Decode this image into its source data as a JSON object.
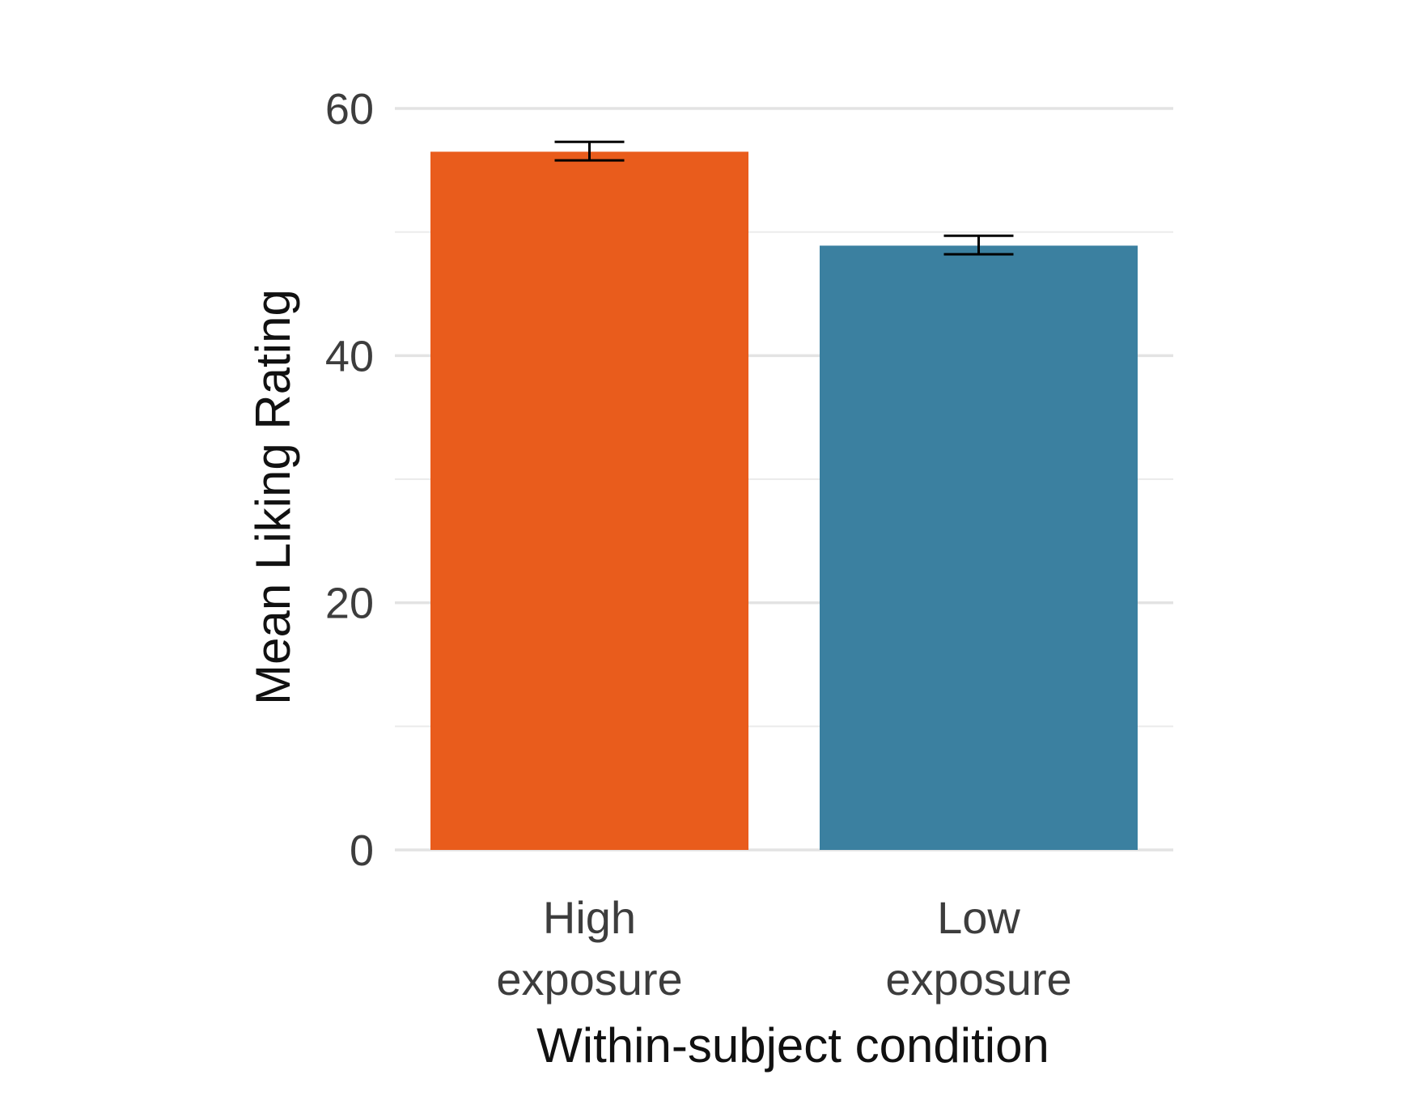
{
  "chart_data": {
    "type": "bar",
    "categories": [
      "High exposure",
      "Low exposure"
    ],
    "category_lines": [
      [
        "High",
        "exposure"
      ],
      [
        "Low",
        "exposure"
      ]
    ],
    "values": [
      56.5,
      48.9
    ],
    "error_bars": [
      {
        "low": 55.8,
        "high": 57.3
      },
      {
        "low": 48.2,
        "high": 49.7
      }
    ],
    "colors": [
      "#E95C1C",
      "#3B80A0"
    ],
    "xlabel": "Within-subject condition",
    "ylabel": "Mean Liking Rating",
    "ylim": [
      0,
      60
    ],
    "yticks": [
      0,
      20,
      40,
      60
    ],
    "minor_yticks": [
      10,
      30,
      50
    ],
    "grid": true,
    "legend": "none"
  }
}
